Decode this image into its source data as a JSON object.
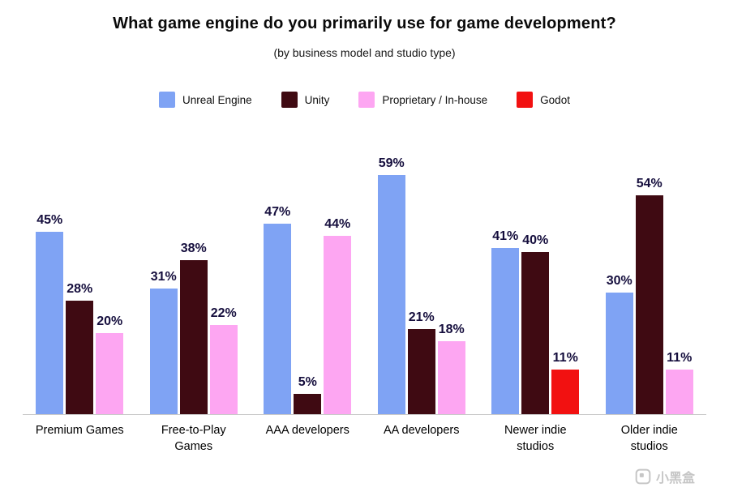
{
  "header": {
    "title": "What game engine do you primarily use for game development?",
    "subtitle": "(by business model and studio type)"
  },
  "chart_data": {
    "type": "bar",
    "title": "What game engine do you primarily use for game development?",
    "subtitle": "(by business model and studio type)",
    "categories": [
      "Premium Games",
      "Free-to-Play Games",
      "AAA developers",
      "AA developers",
      "Newer indie studios",
      "Older indie studios"
    ],
    "series": [
      {
        "name": "Unreal Engine",
        "color": "#7fa3f4",
        "values": [
          45,
          31,
          47,
          59,
          41,
          30
        ]
      },
      {
        "name": "Unity",
        "color": "#3f0a12",
        "values": [
          28,
          38,
          5,
          21,
          40,
          54
        ]
      },
      {
        "name": "Proprietary / In-house",
        "color": "#fda6f2",
        "values": [
          20,
          22,
          44,
          18,
          null,
          11
        ]
      },
      {
        "name": "Godot",
        "color": "#f21111",
        "values": [
          null,
          null,
          null,
          null,
          11,
          null
        ]
      }
    ],
    "value_suffix": "%",
    "ylim": [
      0,
      62
    ],
    "xlabel": "",
    "ylabel": "",
    "grid": false,
    "legend_position": "top",
    "value_labels": "above-bars"
  },
  "watermark": {
    "text": "小黑盒"
  }
}
